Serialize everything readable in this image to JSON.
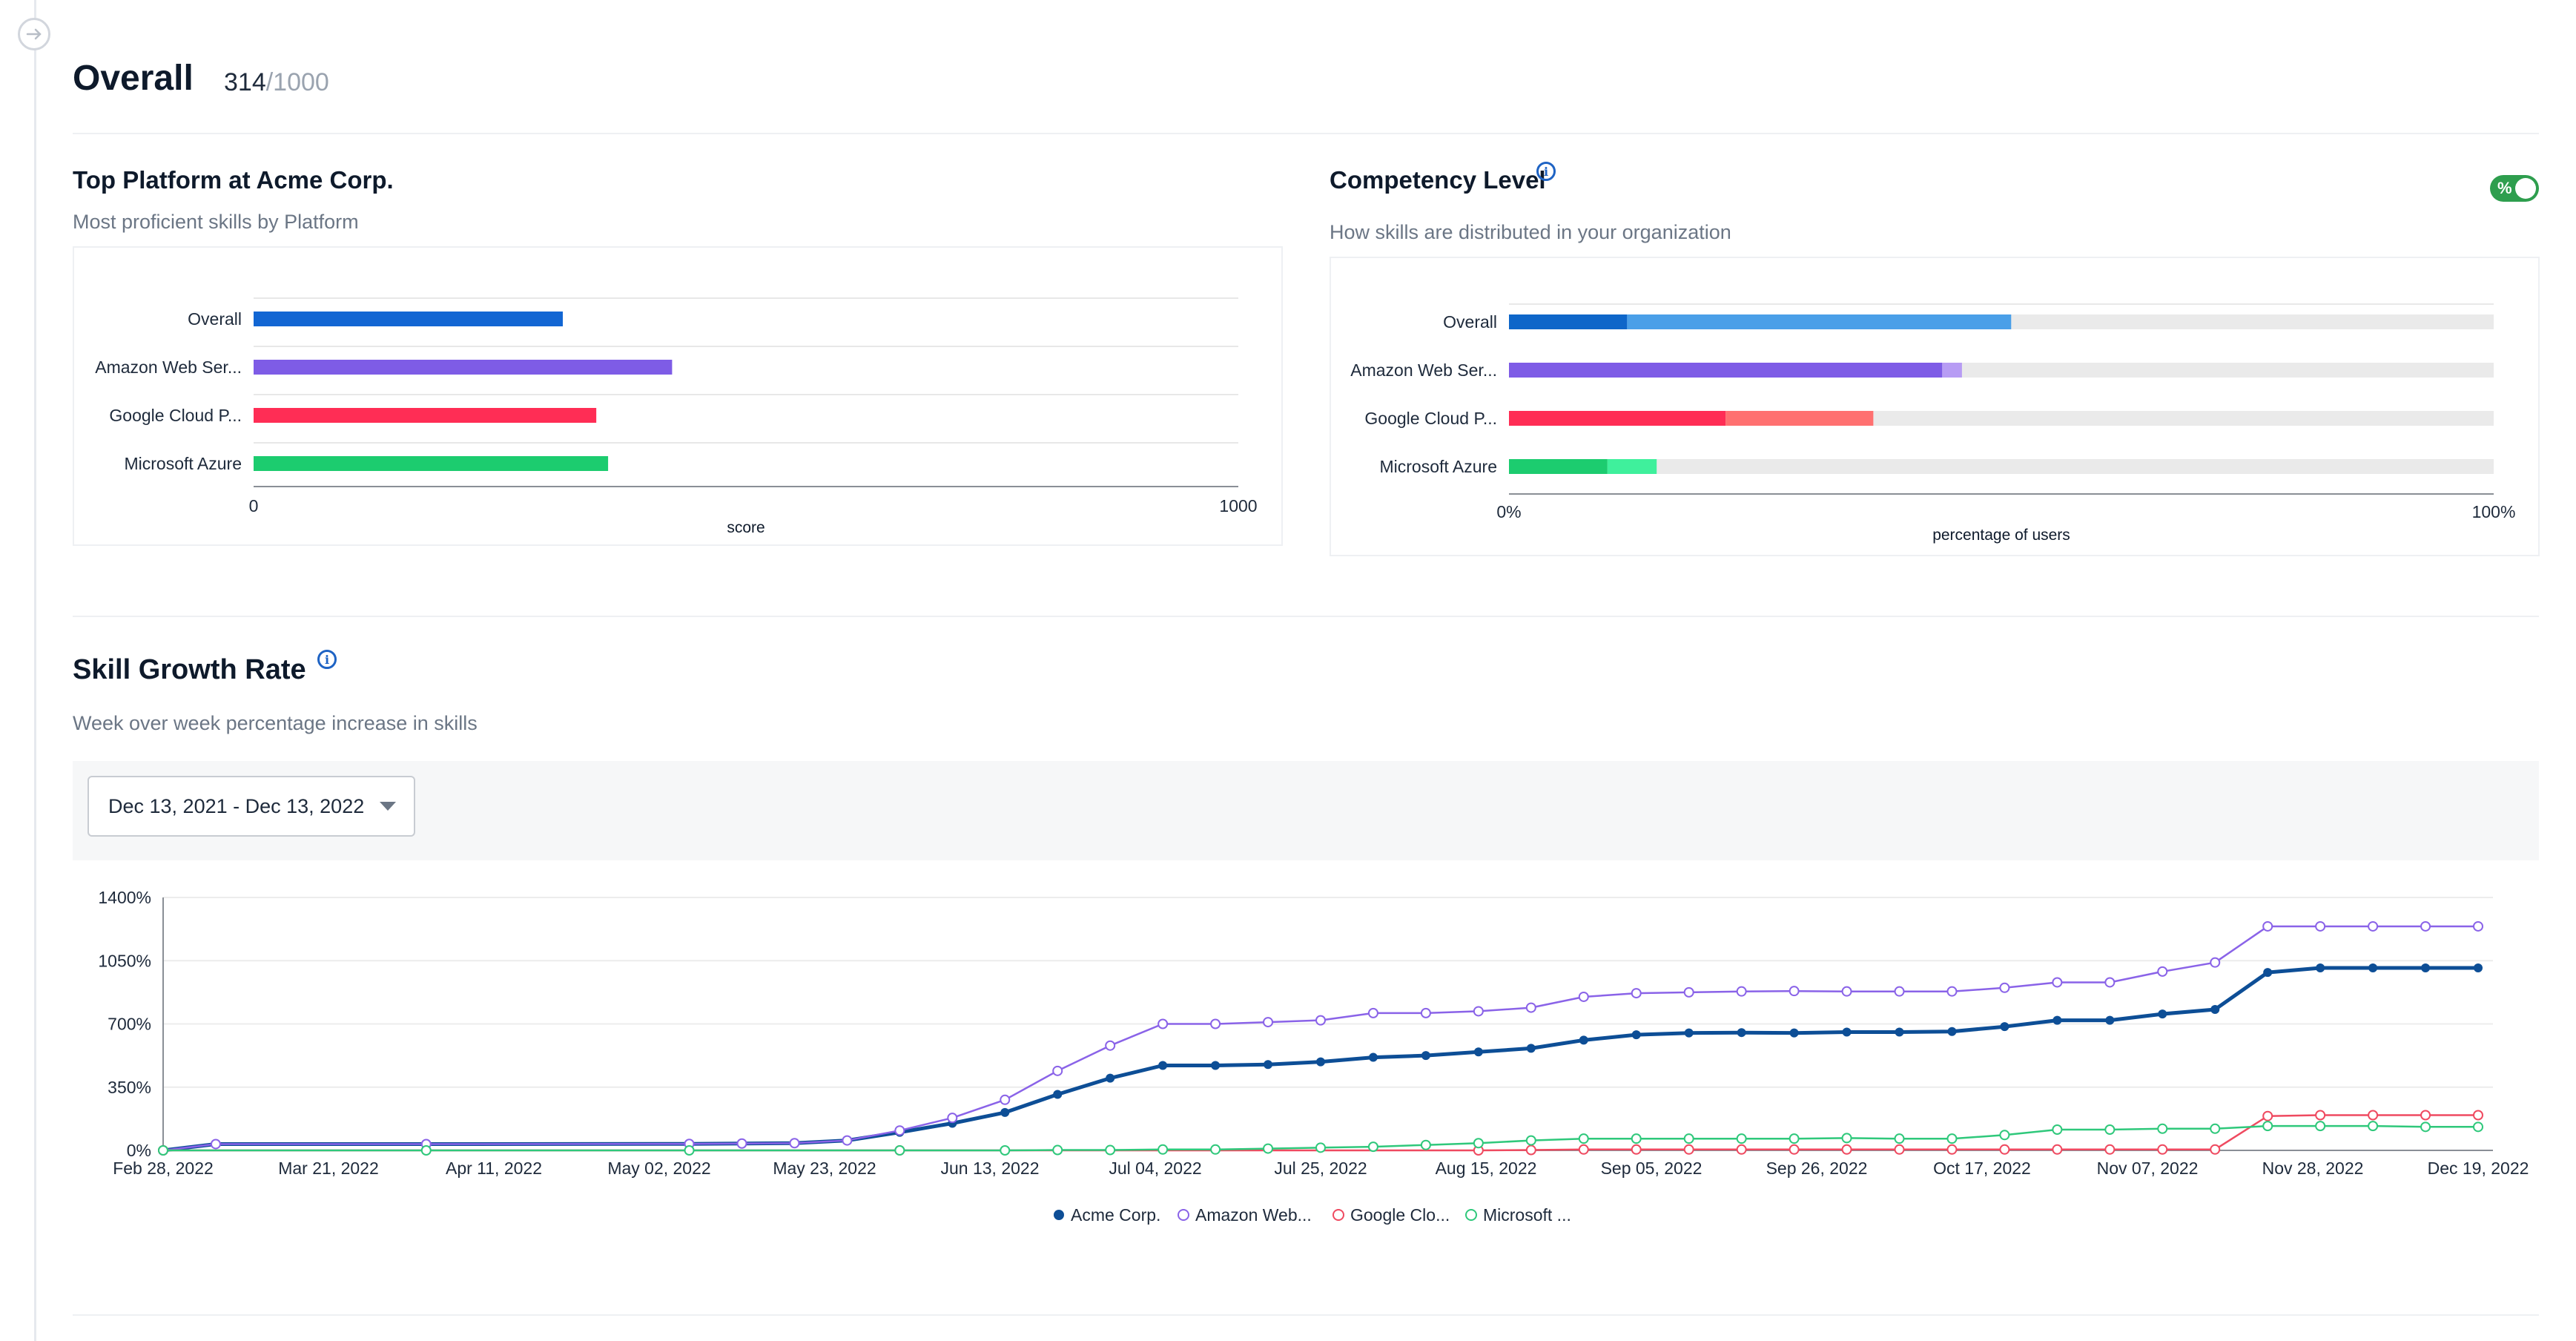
{
  "header": {
    "title": "Overall",
    "score": "314",
    "score_max": "/1000"
  },
  "top_platform": {
    "title": "Top Platform at Acme Corp.",
    "subtitle": "Most proficient skills by Platform",
    "chart_data": {
      "type": "bar",
      "orientation": "horizontal",
      "categories": [
        "Overall",
        "Amazon Web Ser...",
        "Google Cloud P...",
        "Microsoft Azure"
      ],
      "values": [
        314,
        425,
        348,
        360
      ],
      "colors": [
        "#1266d3",
        "#7e5ce6",
        "#ff2d55",
        "#1ccc6f"
      ],
      "xlabel": "score",
      "xlim": [
        0,
        1000
      ],
      "tick_labels": [
        "0",
        "1000"
      ],
      "grid": true
    }
  },
  "competency": {
    "title": "Competency Level",
    "subtitle": "How skills are distributed in your organization",
    "toggle_label": "%",
    "chart_data": {
      "type": "bar",
      "orientation": "horizontal",
      "stacked": true,
      "categories": [
        "Overall",
        "Amazon Web Ser...",
        "Google Cloud P...",
        "Microsoft Azure"
      ],
      "series": [
        {
          "values": [
            12,
            44,
            22,
            10
          ],
          "colors": [
            "#0e66c9",
            "#7e5ce6",
            "#ff2d55",
            "#1ccc6f"
          ]
        },
        {
          "values": [
            39,
            2,
            15,
            5
          ],
          "colors": [
            "#4a9fe8",
            "#b79cf4",
            "#ff7070",
            "#3ff09c"
          ]
        }
      ],
      "xlabel": "percentage of users",
      "xlim": [
        0,
        100
      ],
      "tick_labels": [
        "0%",
        "100%"
      ],
      "track_color": "#eaeaea"
    }
  },
  "growth": {
    "title": "Skill Growth Rate",
    "subtitle": "Week over week percentage increase in skills",
    "date_range": "Dec 13, 2021 - Dec 13, 2022",
    "chart_data": {
      "type": "line",
      "x_labels": [
        "Feb 28, 2022",
        "Mar 21, 2022",
        "Apr 11, 2022",
        "May 02, 2022",
        "May 23, 2022",
        "Jun 13, 2022",
        "Jul 04, 2022",
        "Jul 25, 2022",
        "Aug 15, 2022",
        "Sep 05, 2022",
        "Sep 26, 2022",
        "Oct 17, 2022",
        "Nov 07, 2022",
        "Nov 28, 2022",
        "Dec 19, 2022"
      ],
      "y_tick_labels": [
        "0%",
        "350%",
        "700%",
        "1050%",
        "1400%"
      ],
      "ylim": [
        0,
        1400
      ],
      "series": [
        {
          "name": "Acme Corp.",
          "color": "#0d4e96",
          "marker": "filled",
          "points": [
            {
              "x": 0,
              "y": 0
            },
            {
              "x": 1,
              "y": 35
            },
            {
              "x": 5,
              "y": 35
            },
            {
              "x": 10,
              "y": 36
            },
            {
              "x": 11,
              "y": 38
            },
            {
              "x": 12,
              "y": 40
            },
            {
              "x": 13,
              "y": 55
            },
            {
              "x": 14,
              "y": 100
            },
            {
              "x": 15,
              "y": 150
            },
            {
              "x": 16,
              "y": 210
            },
            {
              "x": 17,
              "y": 310
            },
            {
              "x": 18,
              "y": 400
            },
            {
              "x": 19,
              "y": 470
            },
            {
              "x": 20,
              "y": 470
            },
            {
              "x": 21,
              "y": 475
            },
            {
              "x": 22,
              "y": 490
            },
            {
              "x": 23,
              "y": 515
            },
            {
              "x": 24,
              "y": 525
            },
            {
              "x": 25,
              "y": 545
            },
            {
              "x": 26,
              "y": 565
            },
            {
              "x": 27,
              "y": 610
            },
            {
              "x": 28,
              "y": 640
            },
            {
              "x": 29,
              "y": 650
            },
            {
              "x": 30,
              "y": 652
            },
            {
              "x": 31,
              "y": 650
            },
            {
              "x": 32,
              "y": 655
            },
            {
              "x": 33,
              "y": 655
            },
            {
              "x": 34,
              "y": 658
            },
            {
              "x": 35,
              "y": 685
            },
            {
              "x": 36,
              "y": 720
            },
            {
              "x": 37,
              "y": 720
            },
            {
              "x": 38,
              "y": 755
            },
            {
              "x": 39,
              "y": 780
            },
            {
              "x": 40,
              "y": 985
            },
            {
              "x": 41,
              "y": 1010
            },
            {
              "x": 42,
              "y": 1010
            },
            {
              "x": 43,
              "y": 1010
            },
            {
              "x": 44,
              "y": 1010
            }
          ]
        },
        {
          "name": "Amazon Web...",
          "color": "#8a63e8",
          "marker": "hollow",
          "points": [
            {
              "x": 0,
              "y": 0
            },
            {
              "x": 1,
              "y": 35
            },
            {
              "x": 5,
              "y": 35
            },
            {
              "x": 10,
              "y": 36
            },
            {
              "x": 11,
              "y": 38
            },
            {
              "x": 12,
              "y": 40
            },
            {
              "x": 13,
              "y": 55
            },
            {
              "x": 14,
              "y": 110
            },
            {
              "x": 15,
              "y": 180
            },
            {
              "x": 16,
              "y": 280
            },
            {
              "x": 17,
              "y": 440
            },
            {
              "x": 18,
              "y": 580
            },
            {
              "x": 19,
              "y": 700
            },
            {
              "x": 20,
              "y": 700
            },
            {
              "x": 21,
              "y": 710
            },
            {
              "x": 22,
              "y": 720
            },
            {
              "x": 23,
              "y": 760
            },
            {
              "x": 24,
              "y": 760
            },
            {
              "x": 25,
              "y": 770
            },
            {
              "x": 26,
              "y": 790
            },
            {
              "x": 27,
              "y": 850
            },
            {
              "x": 28,
              "y": 870
            },
            {
              "x": 29,
              "y": 875
            },
            {
              "x": 30,
              "y": 880
            },
            {
              "x": 31,
              "y": 882
            },
            {
              "x": 32,
              "y": 880
            },
            {
              "x": 33,
              "y": 880
            },
            {
              "x": 34,
              "y": 880
            },
            {
              "x": 35,
              "y": 900
            },
            {
              "x": 36,
              "y": 930
            },
            {
              "x": 37,
              "y": 930
            },
            {
              "x": 38,
              "y": 990
            },
            {
              "x": 39,
              "y": 1040
            },
            {
              "x": 40,
              "y": 1240
            },
            {
              "x": 41,
              "y": 1240
            },
            {
              "x": 42,
              "y": 1240
            },
            {
              "x": 43,
              "y": 1240
            },
            {
              "x": 44,
              "y": 1240
            }
          ]
        },
        {
          "name": "Google Clo...",
          "color": "#ef4a60",
          "marker": "hollow",
          "points": [
            {
              "x": 0,
              "y": 0
            },
            {
              "x": 14,
              "y": 0
            },
            {
              "x": 25,
              "y": 0
            },
            {
              "x": 26,
              "y": 2
            },
            {
              "x": 27,
              "y": 5
            },
            {
              "x": 28,
              "y": 5
            },
            {
              "x": 29,
              "y": 5
            },
            {
              "x": 30,
              "y": 5
            },
            {
              "x": 31,
              "y": 5
            },
            {
              "x": 32,
              "y": 5
            },
            {
              "x": 33,
              "y": 5
            },
            {
              "x": 34,
              "y": 5
            },
            {
              "x": 35,
              "y": 5
            },
            {
              "x": 36,
              "y": 5
            },
            {
              "x": 37,
              "y": 5
            },
            {
              "x": 38,
              "y": 5
            },
            {
              "x": 39,
              "y": 5
            },
            {
              "x": 40,
              "y": 190
            },
            {
              "x": 41,
              "y": 195
            },
            {
              "x": 42,
              "y": 195
            },
            {
              "x": 43,
              "y": 195
            },
            {
              "x": 44,
              "y": 195
            }
          ]
        },
        {
          "name": "Microsoft ...",
          "color": "#2fc87b",
          "marker": "hollow",
          "points": [
            {
              "x": 0,
              "y": 0
            },
            {
              "x": 5,
              "y": 0
            },
            {
              "x": 10,
              "y": 0
            },
            {
              "x": 14,
              "y": 0
            },
            {
              "x": 16,
              "y": 0
            },
            {
              "x": 17,
              "y": 2
            },
            {
              "x": 18,
              "y": 2
            },
            {
              "x": 19,
              "y": 5
            },
            {
              "x": 20,
              "y": 5
            },
            {
              "x": 21,
              "y": 10
            },
            {
              "x": 22,
              "y": 15
            },
            {
              "x": 23,
              "y": 20
            },
            {
              "x": 24,
              "y": 30
            },
            {
              "x": 25,
              "y": 40
            },
            {
              "x": 26,
              "y": 55
            },
            {
              "x": 27,
              "y": 65
            },
            {
              "x": 28,
              "y": 65
            },
            {
              "x": 29,
              "y": 65
            },
            {
              "x": 30,
              "y": 65
            },
            {
              "x": 31,
              "y": 65
            },
            {
              "x": 32,
              "y": 68
            },
            {
              "x": 33,
              "y": 65
            },
            {
              "x": 34,
              "y": 65
            },
            {
              "x": 35,
              "y": 85
            },
            {
              "x": 36,
              "y": 115
            },
            {
              "x": 37,
              "y": 115
            },
            {
              "x": 38,
              "y": 120
            },
            {
              "x": 39,
              "y": 120
            },
            {
              "x": 40,
              "y": 135
            },
            {
              "x": 41,
              "y": 135
            },
            {
              "x": 42,
              "y": 135
            },
            {
              "x": 43,
              "y": 130
            },
            {
              "x": 44,
              "y": 130
            }
          ]
        }
      ],
      "xlim": [
        0,
        45
      ],
      "grid": true,
      "legend_position": "bottom-center"
    }
  },
  "icons": {
    "expand": "arrow-right-circle-icon",
    "info": "info-icon",
    "caret": "caret-down-icon"
  }
}
